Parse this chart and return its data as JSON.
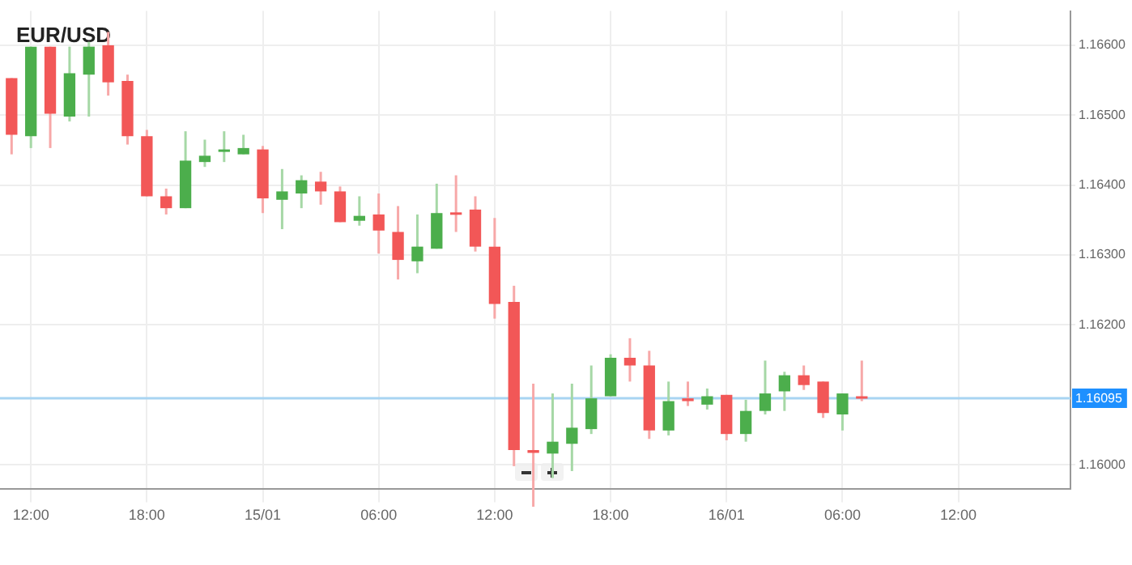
{
  "chart_data": {
    "type": "candlestick",
    "title": "EUR/USD",
    "x": [
      "--01-14T11:00",
      "--01-14T12:00",
      "--01-14T13:00",
      "--01-14T14:00",
      "--01-14T15:00",
      "--01-14T16:00",
      "--01-14T17:00",
      "--01-14T18:00",
      "--01-14T19:00",
      "--01-14T20:00",
      "--01-14T21:00",
      "--01-14T22:00",
      "--01-14T23:00",
      "--01-15T00:00",
      "--01-15T01:00",
      "--01-15T02:00",
      "--01-15T03:00",
      "--01-15T04:00",
      "--01-15T05:00",
      "--01-15T06:00",
      "--01-15T07:00",
      "--01-15T08:00",
      "--01-15T09:00",
      "--01-15T10:00",
      "--01-15T11:00",
      "--01-15T12:00",
      "--01-15T13:00",
      "--01-15T14:00",
      "--01-15T15:00",
      "--01-15T16:00",
      "--01-15T17:00",
      "--01-15T18:00",
      "--01-15T19:00",
      "--01-15T20:00",
      "--01-15T21:00",
      "--01-15T22:00",
      "--01-15T23:00",
      "--01-16T00:00",
      "--01-16T01:00",
      "--01-16T02:00",
      "--01-16T03:00",
      "--01-16T04:00",
      "--01-16T05:00",
      "--01-16T06:00",
      "--01-16T07:00"
    ],
    "ohlc": [
      [
        1.16553,
        1.16553,
        1.16444,
        1.16472
      ],
      [
        1.1647,
        1.16598,
        1.16453,
        1.16598
      ],
      [
        1.16598,
        1.16598,
        1.16453,
        1.16502
      ],
      [
        1.16498,
        1.16598,
        1.16491,
        1.1656
      ],
      [
        1.16558,
        1.16605,
        1.16498,
        1.16598
      ],
      [
        1.166,
        1.16619,
        1.16528,
        1.16547
      ],
      [
        1.16549,
        1.16558,
        1.16458,
        1.1647
      ],
      [
        1.1647,
        1.16479,
        1.16384,
        1.16384
      ],
      [
        1.16384,
        1.16395,
        1.16358,
        1.16367
      ],
      [
        1.16367,
        1.16477,
        1.16367,
        1.16435
      ],
      [
        1.16433,
        1.16465,
        1.16426,
        1.16442
      ],
      [
        1.16449,
        1.16477,
        1.16433,
        1.16451
      ],
      [
        1.16444,
        1.16472,
        1.16444,
        1.16453
      ],
      [
        1.16451,
        1.16456,
        1.1636,
        1.16381
      ],
      [
        1.16379,
        1.16423,
        1.16337,
        1.16391
      ],
      [
        1.16388,
        1.16414,
        1.16367,
        1.16407
      ],
      [
        1.16405,
        1.16419,
        1.16372,
        1.16391
      ],
      [
        1.16391,
        1.16398,
        1.16347,
        1.16347
      ],
      [
        1.16349,
        1.16384,
        1.16342,
        1.16356
      ],
      [
        1.16358,
        1.16388,
        1.16302,
        1.16335
      ],
      [
        1.16333,
        1.1637,
        1.16265,
        1.16293
      ],
      [
        1.16291,
        1.16358,
        1.16274,
        1.16312
      ],
      [
        1.16309,
        1.16402,
        1.16309,
        1.1636
      ],
      [
        1.16361,
        1.16414,
        1.16333,
        1.16359
      ],
      [
        1.16365,
        1.16384,
        1.16305,
        1.16312
      ],
      [
        1.16312,
        1.16353,
        1.16209,
        1.1623
      ],
      [
        1.16233,
        1.16256,
        1.15998,
        1.16021
      ],
      [
        1.16021,
        1.16116,
        1.1594,
        1.16017
      ],
      [
        1.16016,
        1.16102,
        1.15981,
        1.16033
      ],
      [
        1.1603,
        1.16116,
        1.15991,
        1.16053
      ],
      [
        1.16051,
        1.16142,
        1.16044,
        1.16095
      ],
      [
        1.16098,
        1.16158,
        1.16098,
        1.16153
      ],
      [
        1.16153,
        1.16181,
        1.16119,
        1.16142
      ],
      [
        1.16142,
        1.16163,
        1.16037,
        1.16049
      ],
      [
        1.16049,
        1.16119,
        1.16042,
        1.16091
      ],
      [
        1.16095,
        1.16119,
        1.16084,
        1.16091
      ],
      [
        1.16086,
        1.16109,
        1.16079,
        1.16098
      ],
      [
        1.161,
        1.161,
        1.16035,
        1.16044
      ],
      [
        1.16044,
        1.16093,
        1.16033,
        1.16077
      ],
      [
        1.16077,
        1.16149,
        1.16072,
        1.16102
      ],
      [
        1.16105,
        1.16133,
        1.16077,
        1.16128
      ],
      [
        1.16128,
        1.16142,
        1.16107,
        1.16114
      ],
      [
        1.16119,
        1.16119,
        1.16067,
        1.16074
      ],
      [
        1.16072,
        1.16102,
        1.16049,
        1.16102
      ],
      [
        1.16098,
        1.16149,
        1.16091,
        1.16095
      ]
    ],
    "xlim": [
      "--01-14T10:24",
      "--01-16T17:48"
    ],
    "xticks": [
      {
        "value": "--01-14T12:00",
        "label": "12:00"
      },
      {
        "value": "--01-14T18:00",
        "label": "18:00"
      },
      {
        "value": "--01-15T00:00",
        "label": "15/01"
      },
      {
        "value": "--01-15T06:00",
        "label": "06:00"
      },
      {
        "value": "--01-15T12:00",
        "label": "12:00"
      },
      {
        "value": "--01-15T18:00",
        "label": "18:00"
      },
      {
        "value": "--01-16T00:00",
        "label": "16/01"
      },
      {
        "value": "--01-16T06:00",
        "label": "06:00"
      },
      {
        "value": "--01-16T12:00",
        "label": "12:00"
      }
    ],
    "ylim": [
      1.15965,
      1.16649
    ],
    "yticks": [
      {
        "value": 1.16,
        "label": "1.16000"
      },
      {
        "value": 1.162,
        "label": "1.16200"
      },
      {
        "value": 1.163,
        "label": "1.16300"
      },
      {
        "value": 1.164,
        "label": "1.16400"
      },
      {
        "value": 1.165,
        "label": "1.16500"
      },
      {
        "value": 1.166,
        "label": "1.16600"
      }
    ],
    "ref_lines": [
      {
        "axis": "y",
        "value": 1.16095,
        "label": "1.16095",
        "color": "#a8d4f2"
      }
    ],
    "grid": true,
    "legend": false
  }
}
